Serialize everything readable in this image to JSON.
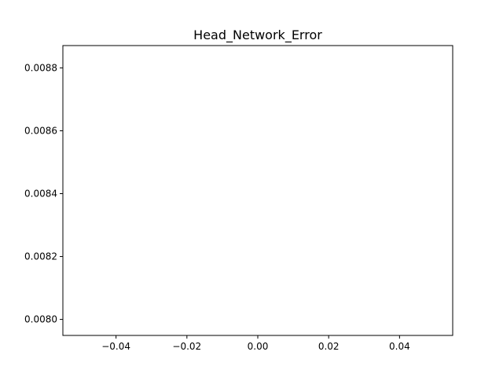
{
  "chart_data": {
    "type": "line",
    "title": "Head_Network_Error",
    "xlabel": "",
    "ylabel": "",
    "series": [],
    "xlim": [
      -0.055,
      0.055
    ],
    "ylim": [
      0.007949,
      0.008871
    ],
    "xticks": [
      -0.04,
      -0.02,
      0.0,
      0.02,
      0.04
    ],
    "xtick_labels": [
      "−0.04",
      "−0.02",
      "0.00",
      "0.02",
      "0.04"
    ],
    "yticks": [
      0.008,
      0.0082,
      0.0084,
      0.0086,
      0.0088
    ],
    "ytick_labels": [
      "0.0080",
      "0.0082",
      "0.0084",
      "0.0086",
      "0.0088"
    ],
    "grid": false,
    "legend": "none"
  }
}
